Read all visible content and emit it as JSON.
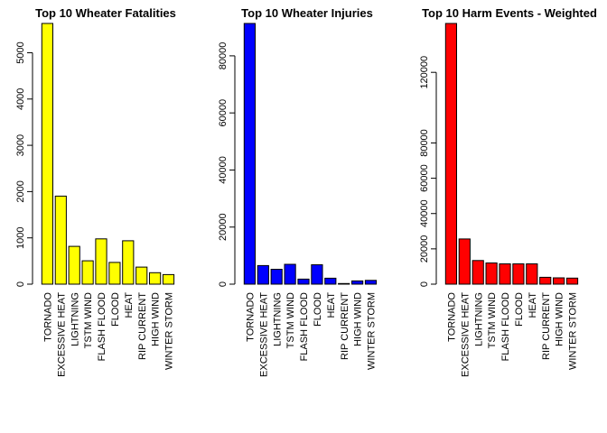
{
  "chart_data": [
    {
      "type": "bar",
      "title": "Top 10 Wheater Fatalities",
      "categories": [
        "TORNADO",
        "EXCESSIVE HEAT",
        "LIGHTNING",
        "TSTM WIND",
        "FLASH FLOOD",
        "FLOOD",
        "HEAT",
        "RIP CURRENT",
        "HIGH WIND",
        "WINTER STORM"
      ],
      "values": [
        5633,
        1903,
        816,
        504,
        978,
        470,
        937,
        368,
        248,
        206
      ],
      "yticks": [
        0,
        1000,
        2000,
        3000,
        4000,
        5000
      ],
      "ylim": [
        0,
        5633
      ],
      "color": "#ffff00",
      "xlabel": "",
      "ylabel": "",
      "grid": false
    },
    {
      "type": "bar",
      "title": "Top 10 Wheater Injuries",
      "categories": [
        "TORNADO",
        "EXCESSIVE HEAT",
        "LIGHTNING",
        "TSTM WIND",
        "FLASH FLOOD",
        "FLOOD",
        "HEAT",
        "RIP CURRENT",
        "HIGH WIND",
        "WINTER STORM"
      ],
      "values": [
        91346,
        6525,
        5230,
        6957,
        1777,
        6789,
        2100,
        232,
        1137,
        1321
      ],
      "yticks": [
        0,
        20000,
        40000,
        60000,
        80000
      ],
      "ylim": [
        0,
        91346
      ],
      "color": "#0000ff",
      "xlabel": "",
      "ylabel": "",
      "grid": false
    },
    {
      "type": "bar",
      "title": "Top 10 Harm Events - Weighted",
      "categories": [
        "TORNADO",
        "EXCESSIVE HEAT",
        "LIGHTNING",
        "TSTM WIND",
        "FLASH FLOOD",
        "FLOOD",
        "HEAT",
        "RIP CURRENT",
        "HIGH WIND",
        "WINTER STORM"
      ],
      "values": [
        147700,
        25600,
        13400,
        12000,
        11500,
        11500,
        11500,
        3900,
        3600,
        3400
      ],
      "yticks": [
        0,
        20000,
        40000,
        60000,
        80000,
        120000
      ],
      "ylim": [
        0,
        147700
      ],
      "color": "#ff0000",
      "xlabel": "",
      "ylabel": "",
      "grid": false
    }
  ]
}
